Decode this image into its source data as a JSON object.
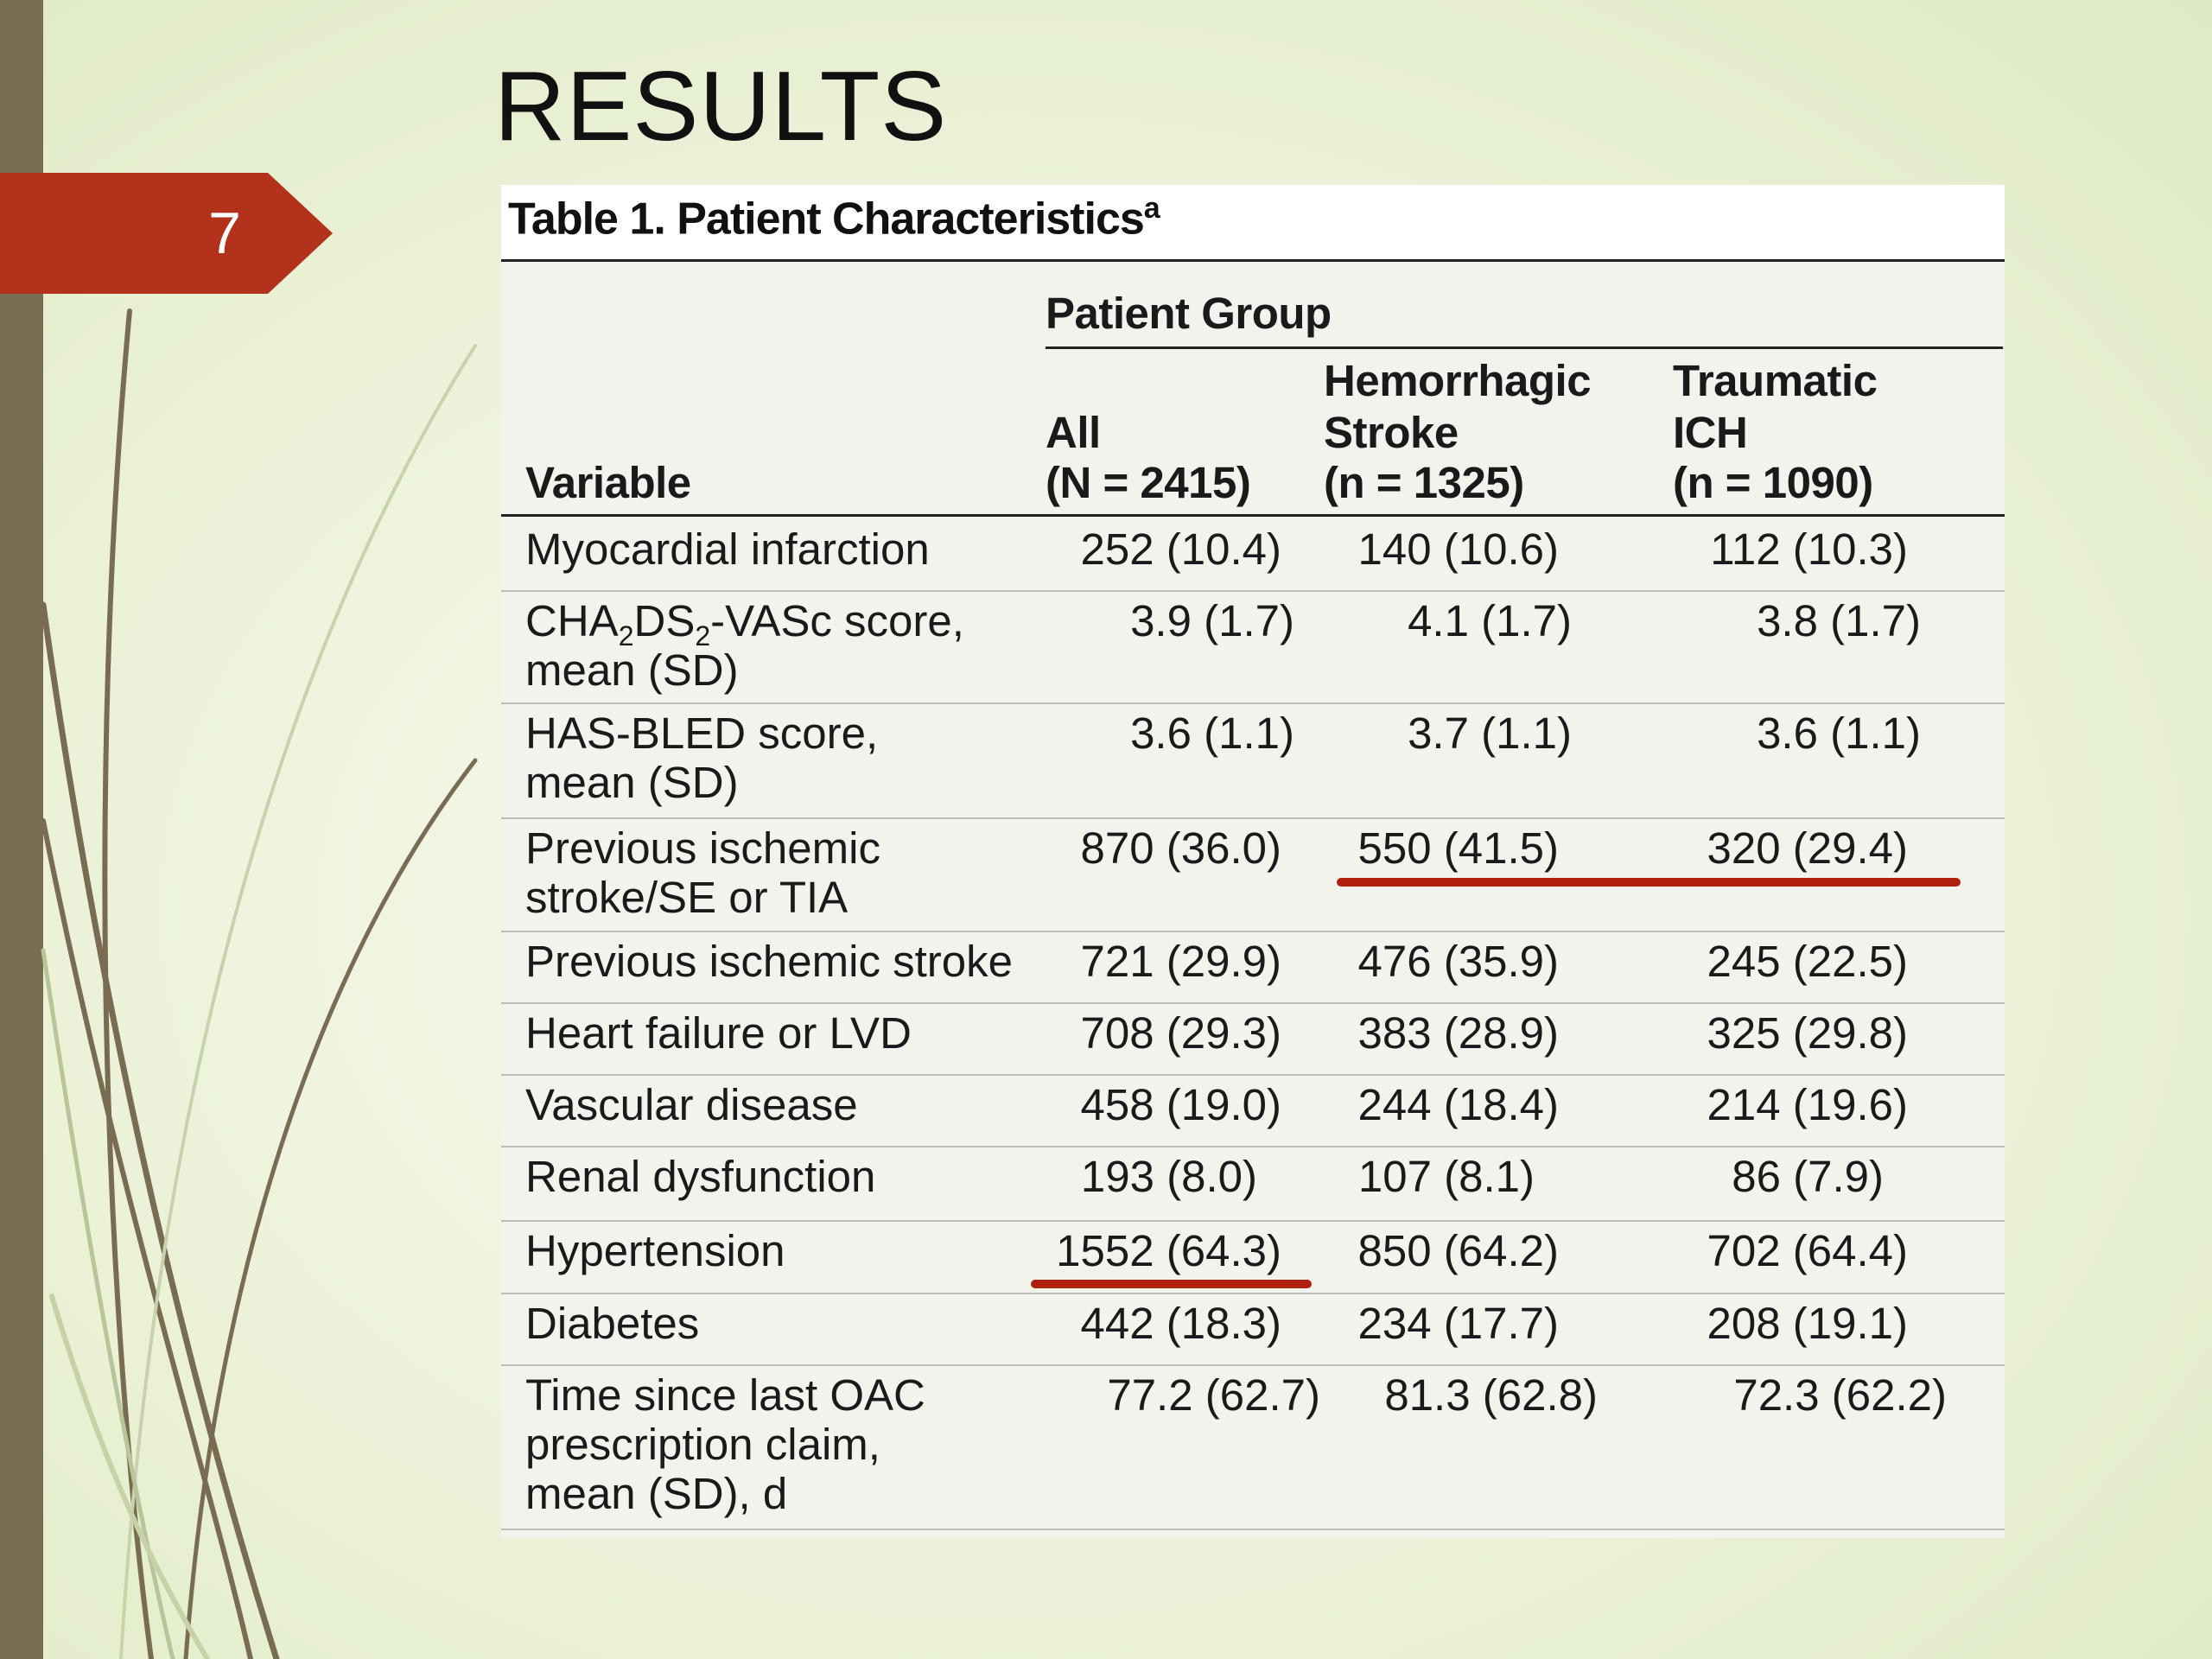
{
  "slide": {
    "number": "7",
    "title": "RESULTS",
    "accent_color": "#b3321b",
    "sidebar_color": "#7a6c52"
  },
  "table": {
    "caption": "Table 1. Patient Characteristics",
    "caption_note": "a",
    "group_header": "Patient Group",
    "columns": {
      "variable": "Variable",
      "all": [
        "All",
        "(N = 2415)"
      ],
      "hemorrhagic": [
        "Hemorrhagic",
        "Stroke",
        "(n = 1325)"
      ],
      "traumatic": [
        "Traumatic",
        "ICH",
        "(n = 1090)"
      ]
    },
    "rows": [
      {
        "label": [
          "Myocardial infarction"
        ],
        "all": "252 (10.4)",
        "hem": "140 (10.6)",
        "tra": "112 (10.3)"
      },
      {
        "label_rich": {
          "pre": "CHA",
          "sub1": "2",
          "mid": "DS",
          "sub2": "2",
          "post": "-VASc score,",
          "line2": "mean (SD)"
        },
        "all": "3.9 (1.7)",
        "hem": "4.1 (1.7)",
        "tra": "3.8 (1.7)"
      },
      {
        "label": [
          "HAS-BLED score,",
          "mean (SD)"
        ],
        "all": "3.6 (1.1)",
        "hem": "3.7 (1.1)",
        "tra": "3.6 (1.1)"
      },
      {
        "label": [
          "Previous ischemic",
          "stroke/SE or TIA"
        ],
        "all": "870 (36.0)",
        "hem": "550 (41.5)",
        "tra": "320 (29.4)"
      },
      {
        "label": [
          "Previous ischemic stroke"
        ],
        "all": "721 (29.9)",
        "hem": "476 (35.9)",
        "tra": "245 (22.5)"
      },
      {
        "label": [
          "Heart failure or LVD"
        ],
        "all": "708 (29.3)",
        "hem": "383 (28.9)",
        "tra": "325 (29.8)"
      },
      {
        "label": [
          "Vascular disease"
        ],
        "all": "458 (19.0)",
        "hem": "244 (18.4)",
        "tra": "214 (19.6)"
      },
      {
        "label": [
          "Renal dysfunction"
        ],
        "all": "193 (8.0)",
        "hem": "107 (8.1)",
        "tra": "86 (7.9)"
      },
      {
        "label": [
          "Hypertension"
        ],
        "all": "1552 (64.3)",
        "hem": "850 (64.2)",
        "tra": "702 (64.4)"
      },
      {
        "label": [
          "Diabetes"
        ],
        "all": "442 (18.3)",
        "hem": "234 (17.7)",
        "tra": "208 (19.1)"
      },
      {
        "label": [
          "Time since last OAC",
          "prescription claim,",
          "mean (SD), d"
        ],
        "all": "77.2 (62.7)",
        "hem": "81.3 (62.8)",
        "tra": "72.3 (62.2)"
      }
    ]
  },
  "annotations": [
    {
      "name": "underline-previous-ischemic-hem-tra",
      "color": "#b0200e"
    },
    {
      "name": "underline-hypertension-all",
      "color": "#b0200e"
    }
  ]
}
